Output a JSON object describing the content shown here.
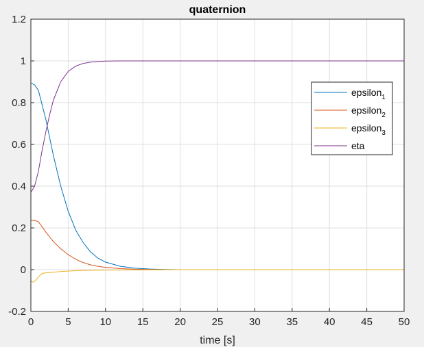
{
  "chart_data": {
    "type": "line",
    "title": "quaternion",
    "xlabel": "time [s]",
    "ylabel": "",
    "xlim": [
      0,
      50
    ],
    "ylim": [
      -0.2,
      1.2
    ],
    "xticks": [
      "0",
      "5",
      "10",
      "15",
      "20",
      "25",
      "30",
      "35",
      "40",
      "45",
      "50"
    ],
    "yticks": [
      "-0.2",
      "0",
      "0.2",
      "0.4",
      "0.6",
      "0.8",
      "1",
      "1.2"
    ],
    "grid": true,
    "legend_position": "right",
    "series": [
      {
        "name": "epsilon",
        "subscript": "1",
        "color": "#0072BD",
        "x": [
          0,
          0.5,
          1,
          2,
          3,
          4,
          5,
          6,
          7,
          8,
          9,
          10,
          12,
          14,
          16,
          18,
          20,
          25,
          30,
          40,
          50
        ],
        "y": [
          0.895,
          0.885,
          0.86,
          0.72,
          0.55,
          0.4,
          0.28,
          0.19,
          0.13,
          0.085,
          0.055,
          0.036,
          0.016,
          0.007,
          0.003,
          0.001,
          0,
          0,
          0,
          0,
          0
        ]
      },
      {
        "name": "epsilon",
        "subscript": "2",
        "color": "#D95319",
        "x": [
          0,
          0.5,
          1,
          2,
          3,
          4,
          5,
          6,
          7,
          8,
          9,
          10,
          12,
          14,
          16,
          18,
          20,
          25,
          30,
          40,
          50
        ],
        "y": [
          0.235,
          0.236,
          0.23,
          0.18,
          0.135,
          0.1,
          0.072,
          0.05,
          0.034,
          0.023,
          0.016,
          0.011,
          0.005,
          0.002,
          0.001,
          0,
          0,
          0,
          0,
          0,
          0
        ]
      },
      {
        "name": "epsilon",
        "subscript": "3",
        "color": "#EDB120",
        "x": [
          0,
          0.3,
          0.7,
          1,
          1.5,
          2,
          3,
          4,
          5,
          6,
          8,
          10,
          15,
          20,
          30,
          40,
          50
        ],
        "y": [
          -0.055,
          -0.06,
          -0.05,
          -0.035,
          -0.018,
          -0.015,
          -0.012,
          -0.009,
          -0.007,
          -0.005,
          -0.003,
          -0.002,
          -0.0005,
          0,
          0,
          0,
          0
        ]
      },
      {
        "name": "eta",
        "subscript": "",
        "color": "#7E2F8E",
        "x": [
          0,
          0.5,
          1,
          1.5,
          2,
          2.5,
          3,
          4,
          5,
          6,
          7,
          8,
          9,
          10,
          12,
          15,
          20,
          30,
          40,
          50
        ],
        "y": [
          0.37,
          0.4,
          0.47,
          0.57,
          0.66,
          0.74,
          0.81,
          0.9,
          0.95,
          0.975,
          0.988,
          0.994,
          0.997,
          0.999,
          1,
          1,
          1,
          1,
          1,
          1
        ]
      }
    ]
  }
}
